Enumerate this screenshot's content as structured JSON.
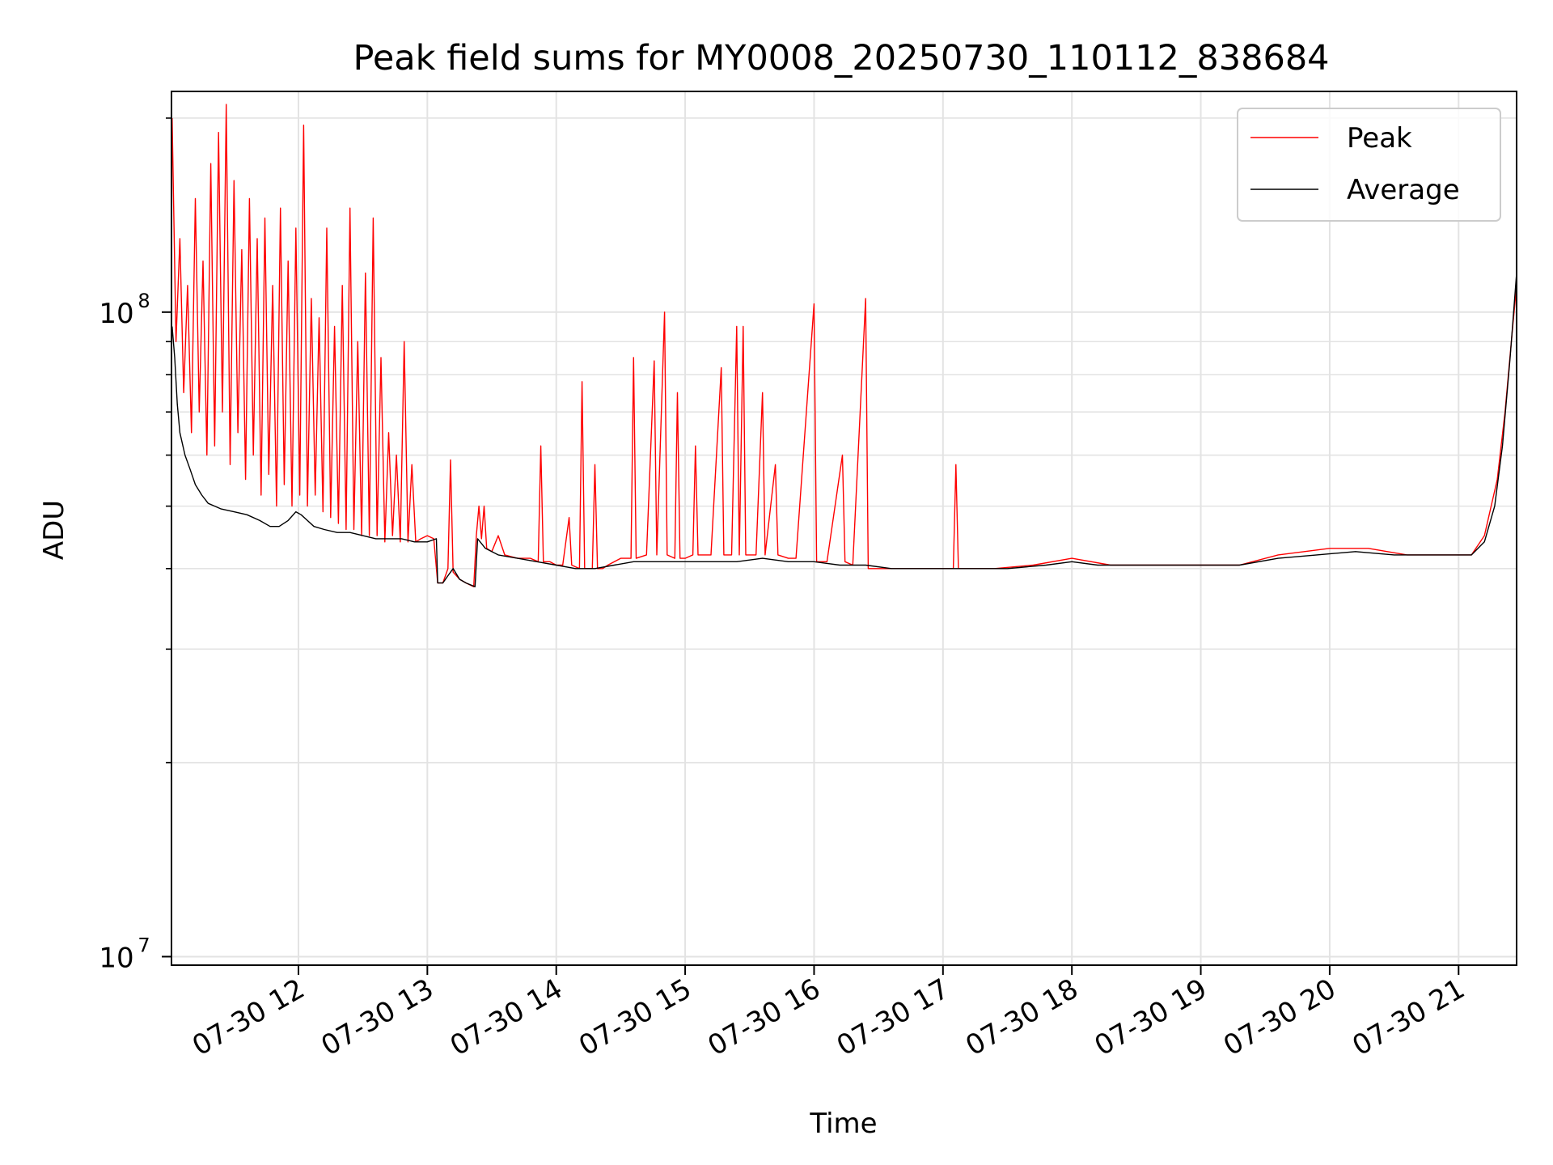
{
  "chart_data": {
    "type": "line",
    "title": "Peak field sums for MY0008_20250730_110112_838684",
    "xlabel": "Time",
    "ylabel": "ADU",
    "yscale": "log",
    "grid": true,
    "legend_position": "upper-right",
    "xlim": [
      11.015,
      21.45
    ],
    "ylim": [
      9700000.0,
      220000000.0
    ],
    "x_ticks": [
      {
        "value": 12,
        "label": "07-30 12"
      },
      {
        "value": 13,
        "label": "07-30 13"
      },
      {
        "value": 14,
        "label": "07-30 14"
      },
      {
        "value": 15,
        "label": "07-30 15"
      },
      {
        "value": 16,
        "label": "07-30 16"
      },
      {
        "value": 17,
        "label": "07-30 17"
      },
      {
        "value": 18,
        "label": "07-30 18"
      },
      {
        "value": 19,
        "label": "07-30 19"
      },
      {
        "value": 20,
        "label": "07-30 20"
      },
      {
        "value": 21,
        "label": "07-30 21"
      }
    ],
    "y_ticks": [
      {
        "value": 10000000,
        "base": "10",
        "exp": "7"
      },
      {
        "value": 100000000,
        "base": "10",
        "exp": "8"
      }
    ],
    "series": [
      {
        "name": "Peak",
        "color": "#ff0000",
        "points": [
          [
            11.02,
            200000000.0
          ],
          [
            11.05,
            90000000.0
          ],
          [
            11.08,
            130000000.0
          ],
          [
            11.11,
            75000000.0
          ],
          [
            11.14,
            110000000.0
          ],
          [
            11.17,
            65000000.0
          ],
          [
            11.2,
            150000000.0
          ],
          [
            11.23,
            70000000.0
          ],
          [
            11.26,
            120000000.0
          ],
          [
            11.29,
            60000000.0
          ],
          [
            11.32,
            170000000.0
          ],
          [
            11.35,
            62000000.0
          ],
          [
            11.38,
            190000000.0
          ],
          [
            11.41,
            70000000.0
          ],
          [
            11.44,
            210000000.0
          ],
          [
            11.47,
            58000000.0
          ],
          [
            11.5,
            160000000.0
          ],
          [
            11.53,
            65000000.0
          ],
          [
            11.56,
            125000000.0
          ],
          [
            11.59,
            55000000.0
          ],
          [
            11.62,
            150000000.0
          ],
          [
            11.65,
            60000000.0
          ],
          [
            11.68,
            130000000.0
          ],
          [
            11.71,
            52000000.0
          ],
          [
            11.74,
            140000000.0
          ],
          [
            11.77,
            56000000.0
          ],
          [
            11.8,
            110000000.0
          ],
          [
            11.83,
            50000000.0
          ],
          [
            11.86,
            145000000.0
          ],
          [
            11.89,
            54000000.0
          ],
          [
            11.92,
            120000000.0
          ],
          [
            11.95,
            50000000.0
          ],
          [
            11.98,
            135000000.0
          ],
          [
            12.01,
            52000000.0
          ],
          [
            12.04,
            195000000.0
          ],
          [
            12.07,
            50000000.0
          ],
          [
            12.1,
            105000000.0
          ],
          [
            12.13,
            52000000.0
          ],
          [
            12.16,
            98000000.0
          ],
          [
            12.19,
            49000000.0
          ],
          [
            12.22,
            135000000.0
          ],
          [
            12.25,
            48000000.0
          ],
          [
            12.28,
            95000000.0
          ],
          [
            12.31,
            47000000.0
          ],
          [
            12.34,
            110000000.0
          ],
          [
            12.37,
            46000000.0
          ],
          [
            12.4,
            145000000.0
          ],
          [
            12.43,
            46000000.0
          ],
          [
            12.46,
            90000000.0
          ],
          [
            12.49,
            45000000.0
          ],
          [
            12.52,
            115000000.0
          ],
          [
            12.55,
            45000000.0
          ],
          [
            12.58,
            140000000.0
          ],
          [
            12.61,
            45000000.0
          ],
          [
            12.64,
            85000000.0
          ],
          [
            12.67,
            44000000.0
          ],
          [
            12.7,
            65000000.0
          ],
          [
            12.73,
            45000000.0
          ],
          [
            12.76,
            60000000.0
          ],
          [
            12.79,
            44000000.0
          ],
          [
            12.82,
            90000000.0
          ],
          [
            12.85,
            44000000.0
          ],
          [
            12.88,
            58000000.0
          ],
          [
            12.91,
            44000000.0
          ],
          [
            12.95,
            44500000.0
          ],
          [
            13.0,
            45000000.0
          ],
          [
            13.05,
            44500000.0
          ],
          [
            13.08,
            38000000.0
          ],
          [
            13.12,
            38000000.0
          ],
          [
            13.16,
            40000000.0
          ],
          [
            13.18,
            59000000.0
          ],
          [
            13.2,
            39500000.0
          ],
          [
            13.25,
            38500000.0
          ],
          [
            13.3,
            38000000.0
          ],
          [
            13.36,
            37500000.0
          ],
          [
            13.38,
            45000000.0
          ],
          [
            13.4,
            50000000.0
          ],
          [
            13.42,
            44500000.0
          ],
          [
            13.44,
            50000000.0
          ],
          [
            13.46,
            43000000.0
          ],
          [
            13.5,
            42500000.0
          ],
          [
            13.55,
            45000000.0
          ],
          [
            13.6,
            42000000.0
          ],
          [
            13.7,
            41500000.0
          ],
          [
            13.8,
            41500000.0
          ],
          [
            13.86,
            41000000.0
          ],
          [
            13.88,
            62000000.0
          ],
          [
            13.9,
            41000000.0
          ],
          [
            13.95,
            41000000.0
          ],
          [
            14.0,
            40500000.0
          ],
          [
            14.05,
            40500000.0
          ],
          [
            14.1,
            48000000.0
          ],
          [
            14.12,
            40500000.0
          ],
          [
            14.18,
            40000000.0
          ],
          [
            14.2,
            78000000.0
          ],
          [
            14.22,
            40000000.0
          ],
          [
            14.28,
            40000000.0
          ],
          [
            14.3,
            58000000.0
          ],
          [
            14.32,
            40000000.0
          ],
          [
            14.36,
            40000000.0
          ],
          [
            14.4,
            40500000.0
          ],
          [
            14.5,
            41500000.0
          ],
          [
            14.58,
            41500000.0
          ],
          [
            14.6,
            85000000.0
          ],
          [
            14.62,
            41500000.0
          ],
          [
            14.7,
            42000000.0
          ],
          [
            14.76,
            84000000.0
          ],
          [
            14.78,
            42000000.0
          ],
          [
            14.84,
            100000000.0
          ],
          [
            14.86,
            42000000.0
          ],
          [
            14.92,
            41500000.0
          ],
          [
            14.94,
            75000000.0
          ],
          [
            14.96,
            41500000.0
          ],
          [
            15.0,
            41500000.0
          ],
          [
            15.06,
            42000000.0
          ],
          [
            15.08,
            62000000.0
          ],
          [
            15.1,
            42000000.0
          ],
          [
            15.2,
            42000000.0
          ],
          [
            15.28,
            82000000.0
          ],
          [
            15.3,
            42000000.0
          ],
          [
            15.36,
            42000000.0
          ],
          [
            15.4,
            95000000.0
          ],
          [
            15.42,
            42000000.0
          ],
          [
            15.45,
            95000000.0
          ],
          [
            15.47,
            42000000.0
          ],
          [
            15.55,
            42000000.0
          ],
          [
            15.6,
            75000000.0
          ],
          [
            15.62,
            42000000.0
          ],
          [
            15.7,
            58000000.0
          ],
          [
            15.72,
            42000000.0
          ],
          [
            15.8,
            41500000.0
          ],
          [
            15.86,
            41500000.0
          ],
          [
            16.0,
            103000000.0
          ],
          [
            16.02,
            41000000.0
          ],
          [
            16.1,
            41000000.0
          ],
          [
            16.22,
            60000000.0
          ],
          [
            16.24,
            41000000.0
          ],
          [
            16.3,
            40500000.0
          ],
          [
            16.4,
            105000000.0
          ],
          [
            16.42,
            40000000.0
          ],
          [
            16.6,
            40000000.0
          ],
          [
            16.8,
            40000000.0
          ],
          [
            17.0,
            40000000.0
          ],
          [
            17.08,
            40000000.0
          ],
          [
            17.1,
            58000000.0
          ],
          [
            17.12,
            40000000.0
          ],
          [
            17.4,
            40000000.0
          ],
          [
            17.7,
            40500000.0
          ],
          [
            18.0,
            41500000.0
          ],
          [
            18.3,
            40500000.0
          ],
          [
            18.7,
            40500000.0
          ],
          [
            19.0,
            40500000.0
          ],
          [
            19.3,
            40500000.0
          ],
          [
            19.6,
            42000000.0
          ],
          [
            20.0,
            43000000.0
          ],
          [
            20.3,
            43000000.0
          ],
          [
            20.6,
            42000000.0
          ],
          [
            20.9,
            42000000.0
          ],
          [
            21.0,
            42000000.0
          ],
          [
            21.1,
            42000000.0
          ],
          [
            21.2,
            45000000.0
          ],
          [
            21.3,
            55000000.0
          ],
          [
            21.36,
            70000000.0
          ],
          [
            21.42,
            95000000.0
          ],
          [
            21.45,
            110000000.0
          ]
        ]
      },
      {
        "name": "Average",
        "color": "#000000",
        "points": [
          [
            11.02,
            95000000.0
          ],
          [
            11.04,
            85000000.0
          ],
          [
            11.06,
            72000000.0
          ],
          [
            11.08,
            65000000.0
          ],
          [
            11.12,
            60000000.0
          ],
          [
            11.16,
            57000000.0
          ],
          [
            11.2,
            54000000.0
          ],
          [
            11.25,
            52000000.0
          ],
          [
            11.3,
            50500000.0
          ],
          [
            11.35,
            50000000.0
          ],
          [
            11.4,
            49500000.0
          ],
          [
            11.5,
            49000000.0
          ],
          [
            11.6,
            48500000.0
          ],
          [
            11.7,
            47500000.0
          ],
          [
            11.78,
            46500000.0
          ],
          [
            11.85,
            46500000.0
          ],
          [
            11.92,
            47500000.0
          ],
          [
            11.98,
            49000000.0
          ],
          [
            12.02,
            48500000.0
          ],
          [
            12.07,
            47500000.0
          ],
          [
            12.12,
            46500000.0
          ],
          [
            12.2,
            46000000.0
          ],
          [
            12.3,
            45500000.0
          ],
          [
            12.4,
            45500000.0
          ],
          [
            12.5,
            45000000.0
          ],
          [
            12.6,
            44500000.0
          ],
          [
            12.7,
            44500000.0
          ],
          [
            12.8,
            44500000.0
          ],
          [
            12.9,
            44000000.0
          ],
          [
            13.0,
            44000000.0
          ],
          [
            13.07,
            44500000.0
          ],
          [
            13.08,
            38000000.0
          ],
          [
            13.12,
            38000000.0
          ],
          [
            13.16,
            39000000.0
          ],
          [
            13.2,
            40000000.0
          ],
          [
            13.25,
            38500000.0
          ],
          [
            13.3,
            38000000.0
          ],
          [
            13.37,
            37500000.0
          ],
          [
            13.39,
            44500000.0
          ],
          [
            13.45,
            43000000.0
          ],
          [
            13.55,
            42000000.0
          ],
          [
            13.7,
            41500000.0
          ],
          [
            13.85,
            41000000.0
          ],
          [
            14.0,
            40500000.0
          ],
          [
            14.15,
            40000000.0
          ],
          [
            14.3,
            40000000.0
          ],
          [
            14.45,
            40500000.0
          ],
          [
            14.6,
            41000000.0
          ],
          [
            14.8,
            41000000.0
          ],
          [
            15.0,
            41000000.0
          ],
          [
            15.2,
            41000000.0
          ],
          [
            15.4,
            41000000.0
          ],
          [
            15.6,
            41500000.0
          ],
          [
            15.8,
            41000000.0
          ],
          [
            16.0,
            41000000.0
          ],
          [
            16.2,
            40500000.0
          ],
          [
            16.4,
            40500000.0
          ],
          [
            16.6,
            40000000.0
          ],
          [
            16.8,
            40000000.0
          ],
          [
            17.0,
            40000000.0
          ],
          [
            17.2,
            40000000.0
          ],
          [
            17.5,
            40000000.0
          ],
          [
            17.8,
            40500000.0
          ],
          [
            18.0,
            41000000.0
          ],
          [
            18.2,
            40500000.0
          ],
          [
            18.5,
            40500000.0
          ],
          [
            18.8,
            40500000.0
          ],
          [
            19.0,
            40500000.0
          ],
          [
            19.3,
            40500000.0
          ],
          [
            19.6,
            41500000.0
          ],
          [
            19.9,
            42000000.0
          ],
          [
            20.2,
            42500000.0
          ],
          [
            20.5,
            42000000.0
          ],
          [
            20.8,
            42000000.0
          ],
          [
            21.0,
            42000000.0
          ],
          [
            21.1,
            42000000.0
          ],
          [
            21.2,
            44000000.0
          ],
          [
            21.28,
            50000000.0
          ],
          [
            21.34,
            62000000.0
          ],
          [
            21.4,
            85000000.0
          ],
          [
            21.45,
            115000000.0
          ]
        ]
      }
    ]
  }
}
